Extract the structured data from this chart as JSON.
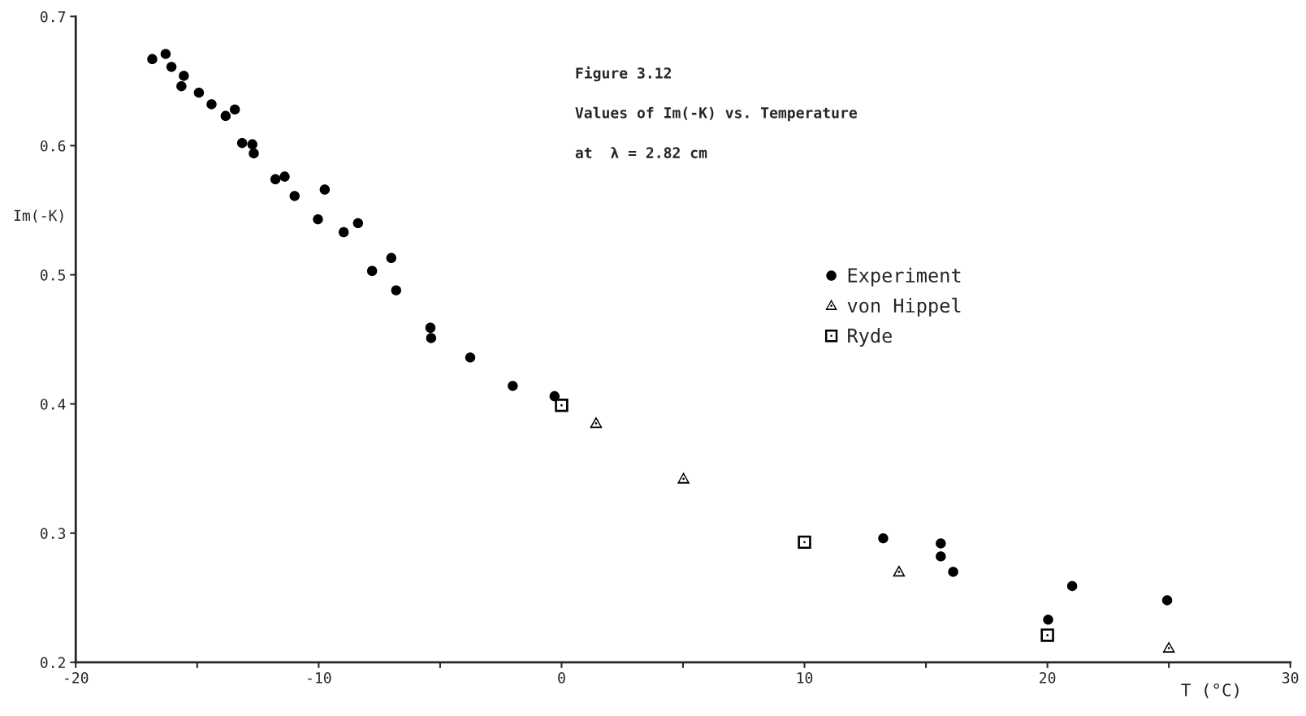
{
  "chart_data": {
    "type": "scatter",
    "xlabel": "T (°C)",
    "ylabel": "Im(-K)",
    "annotations": [
      "Figure 3.12",
      "Values of Im(-K) vs. Temperature",
      "at  λ = 2.82 cm"
    ],
    "xlim": [
      -20,
      30
    ],
    "xticks": [
      -20,
      {
        "value": -15,
        "label": null
      },
      -10,
      {
        "value": -5,
        "label": null
      },
      0,
      {
        "value": 5,
        "label": null
      },
      10,
      {
        "value": 15,
        "label": null
      },
      20,
      {
        "value": 25,
        "label": null
      },
      30
    ],
    "ylim": [
      0.2,
      0.7
    ],
    "yticks": [
      0.2,
      0.3,
      0.4,
      0.5,
      0.6,
      0.7
    ],
    "grid": false,
    "legend": "right",
    "series": [
      {
        "name": "Experiment",
        "color": "#000000",
        "marker": "circle",
        "x": [
          -16.85,
          -16.3,
          -16.06,
          -15.55,
          -15.65,
          -14.93,
          -14.41,
          -13.83,
          -13.45,
          -13.15,
          -12.73,
          -12.67,
          -11.78,
          -11.4,
          -10.99,
          -10.03,
          -9.75,
          -8.97,
          -8.38,
          -7.8,
          -7.01,
          -6.81,
          -5.4,
          -5.37,
          -3.76,
          -2.01,
          -0.29,
          13.24,
          15.61,
          15.61,
          16.12,
          20.03,
          21.02,
          24.93
        ],
        "values": [
          0.667,
          0.671,
          0.661,
          0.654,
          0.646,
          0.641,
          0.632,
          0.623,
          0.628,
          0.602,
          0.601,
          0.594,
          0.574,
          0.576,
          0.561,
          0.543,
          0.566,
          0.533,
          0.54,
          0.503,
          0.513,
          0.488,
          0.459,
          0.451,
          0.436,
          0.414,
          0.406,
          0.296,
          0.292,
          0.282,
          0.27,
          0.233,
          0.259,
          0.248
        ]
      },
      {
        "name": "von Hippel",
        "color": "#000000",
        "marker": "triangle",
        "x": [
          1.42,
          5.02,
          13.89,
          25.0
        ],
        "values": [
          0.385,
          0.342,
          0.27,
          0.211
        ]
      },
      {
        "name": "Ryde",
        "color": "#000000",
        "marker": "square",
        "x": [
          0.0,
          10.0,
          20.0
        ],
        "values": [
          0.399,
          0.293,
          0.221
        ]
      }
    ]
  }
}
